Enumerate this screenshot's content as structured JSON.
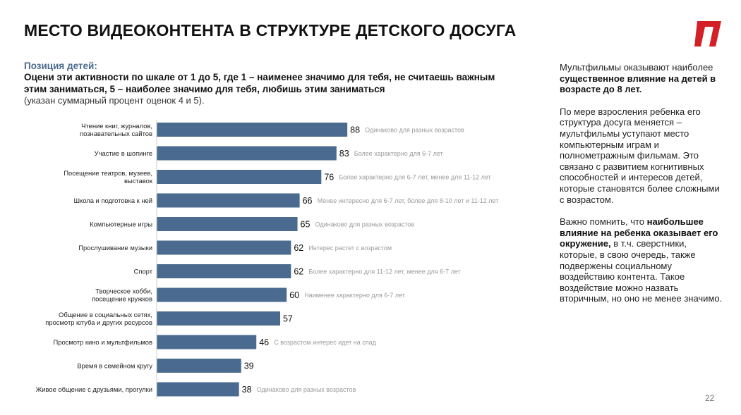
{
  "title": "МЕСТО ВИДЕОКОНТЕНТА В СТРУКТУРЕ ДЕТСКОГО ДОСУГА",
  "brand_color": "#d42027",
  "bar_color": "#4a6a8f",
  "question": {
    "subtitle": "Позиция детей:",
    "text": "Оцени эти активности по шкале от 1 до 5, где 1 – наименее значимо для тебя, не считаешь важным этим заниматься, 5 – наиболее значимо для тебя, любишь этим заниматься",
    "note": "(указан суммарный процент оценок 4 и 5)."
  },
  "chart_data": {
    "type": "bar",
    "orientation": "horizontal",
    "categories": [
      [
        "Чтение книг, журналов,",
        "познавательных сайтов"
      ],
      [
        "Участие в шопинге"
      ],
      [
        "Посещение театров, музеев,",
        "выставок"
      ],
      [
        "Школа и подготовка к ней"
      ],
      [
        "Компьютерные игры"
      ],
      [
        "Прослушивание музыки"
      ],
      [
        "Спорт"
      ],
      [
        "Творческое хобби,",
        "посещение кружков"
      ],
      [
        "Общение в социальных сетях,",
        "просмотр ютуба и других ресурсов"
      ],
      [
        "Просмотр кино и мультфильмов"
      ],
      [
        "Время в семейном кругу"
      ],
      [
        "Живое общение с друзьями, прогулки"
      ]
    ],
    "values": [
      88,
      83,
      76,
      66,
      65,
      62,
      62,
      60,
      57,
      46,
      39,
      38
    ],
    "annotations": [
      "Одинаково для разных возрастов",
      "Более характерно для 6-7 лет",
      "Более характерно для 6-7 лет, менее для 11-12 лет",
      "Менее интересно для 6-7 лет, более для 8-10 лет и 11-12 лет",
      "Одинаково для разных возрастов",
      "Интерес растет с возрастом",
      "Более характерно для 11-12  лет, менее для 6-7 лет",
      "Наименее характерно для 6-7 лет",
      "",
      "С возрастом интерес идет на спад",
      "",
      "Одинаково для разных возрастов"
    ],
    "xlim": [
      0,
      100
    ],
    "grid": false,
    "legend": "none"
  },
  "side_text": {
    "p1_pre": "Мультфильмы оказывают наиболее ",
    "p1_bold": "существенное влияние на детей в возрасте до 8 лет.",
    "p2": "По мере взросления ребенка его структура досуга меняется – мультфильмы уступают место компьютерным играм и полнометражным фильмам. Это связано с развитием когнитивных способностей и интересов детей, которые становятся более сложными с возрастом.",
    "p3_pre": "Важно помнить, что ",
    "p3_bold": "наибольшее влияние на ребенка оказывает его окружение,",
    "p3_post": " в т.ч. сверстники, которые, в свою очередь, также подвержены социальному воздействию контента. Такое воздействие можно назвать вторичным, но оно не менее значимо."
  },
  "page_number": "22"
}
